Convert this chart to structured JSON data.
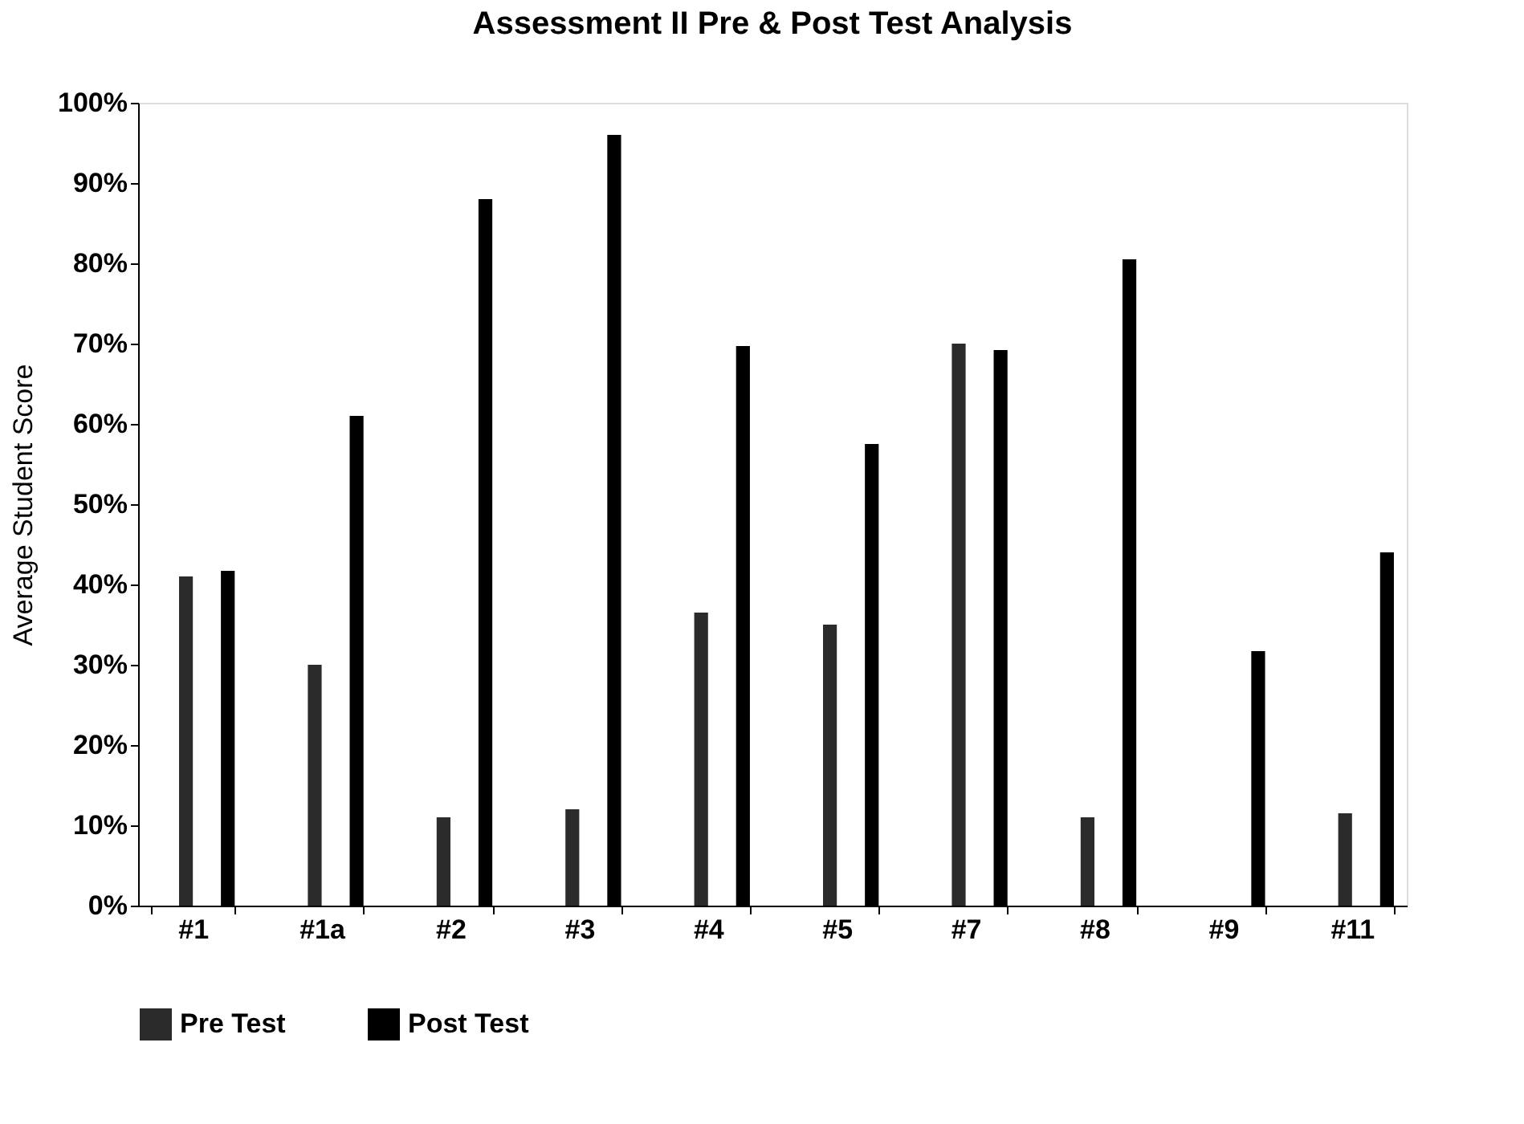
{
  "chart_data": {
    "type": "bar",
    "title": "Assessment II Pre & Post Test Analysis",
    "ylabel": "Average Student Score",
    "categories": [
      "#1",
      "#1a",
      "#2",
      "#3",
      "#4",
      "#5",
      "#7",
      "#8",
      "#9",
      "#11"
    ],
    "series": [
      {
        "name": "Pre Test",
        "color": "#2b2b2b",
        "values": [
          41,
          30,
          11,
          12,
          36.5,
          35,
          70,
          11,
          0,
          11.5
        ]
      },
      {
        "name": "Post Test",
        "color": "#000000",
        "values": [
          41.7,
          61,
          88,
          96,
          69.7,
          57.5,
          69.2,
          80.5,
          31.7,
          44
        ]
      }
    ],
    "ylim": [
      0,
      100
    ],
    "yticks": [
      {
        "value": 0,
        "label": "0%"
      },
      {
        "value": 10,
        "label": "10%"
      },
      {
        "value": 20,
        "label": "20%"
      },
      {
        "value": 30,
        "label": "30%"
      },
      {
        "value": 40,
        "label": "40%"
      },
      {
        "value": 50,
        "label": "50%"
      },
      {
        "value": 60,
        "label": "60%"
      },
      {
        "value": 70,
        "label": "70%"
      },
      {
        "value": 80,
        "label": "80%"
      },
      {
        "value": 90,
        "label": "90%"
      },
      {
        "value": 100,
        "label": "100%"
      }
    ],
    "grid": false,
    "legend": "bottom"
  }
}
